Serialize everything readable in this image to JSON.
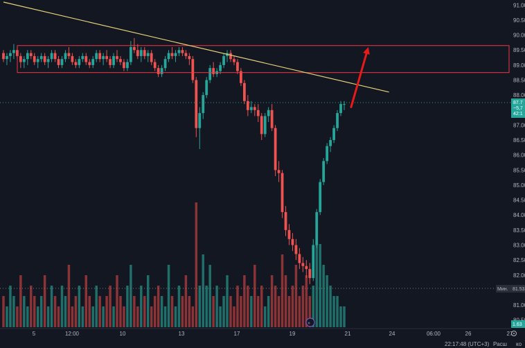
{
  "colors": {
    "background": "#131722",
    "bull": "#26a69a",
    "bear": "#ef5350",
    "vol_bull": "#1f6f6a",
    "vol_bear": "#8c3336",
    "trendline": "#e8d27a",
    "zone": "#f23645",
    "arrow": "#e81a1a",
    "axis_text": "#b2b5be",
    "price_tag_bg": "#26a69a",
    "badge_bg": "#2a2e39"
  },
  "chart_data": {
    "type": "candlestick",
    "y_axis": {
      "range": [
        80.4,
        91.1
      ],
      "ticks": [
        "91.00",
        "90.50",
        "90.00",
        "89.50",
        "89.00",
        "88.50",
        "88.00",
        "87.50",
        "87.00",
        "86.50",
        "86.00",
        "85.50",
        "85.00",
        "84.50",
        "84.00",
        "83.50",
        "83.00",
        "82.50",
        "82.00",
        "81.50",
        "81.00",
        "80.50"
      ]
    },
    "x_axis": {
      "ticks": [
        "5",
        "12:00",
        "10",
        "13",
        "17",
        "19",
        "21",
        "24",
        "06:00",
        "26",
        "27"
      ]
    },
    "candles": [
      [
        89.4,
        89.5,
        89.1,
        89.2
      ],
      [
        89.2,
        89.4,
        89.0,
        89.3
      ],
      [
        89.3,
        89.5,
        89.1,
        89.4
      ],
      [
        89.4,
        89.7,
        89.2,
        89.5
      ],
      [
        89.5,
        89.6,
        89.2,
        89.3
      ],
      [
        89.3,
        89.4,
        88.9,
        89.1
      ],
      [
        89.1,
        89.3,
        88.9,
        89.2
      ],
      [
        89.2,
        89.5,
        89.0,
        89.4
      ],
      [
        89.4,
        89.5,
        89.2,
        89.3
      ],
      [
        89.3,
        89.4,
        89.0,
        89.1
      ],
      [
        89.1,
        89.3,
        88.9,
        89.2
      ],
      [
        89.2,
        89.4,
        89.1,
        89.3
      ],
      [
        89.3,
        89.4,
        89.0,
        89.1
      ],
      [
        89.1,
        89.3,
        88.9,
        89.2
      ],
      [
        89.2,
        89.5,
        89.1,
        89.4
      ],
      [
        89.4,
        89.5,
        89.1,
        89.2
      ],
      [
        89.2,
        89.3,
        88.9,
        89.0
      ],
      [
        89.0,
        89.3,
        88.9,
        89.2
      ],
      [
        89.2,
        89.5,
        89.1,
        89.4
      ],
      [
        89.4,
        89.6,
        89.2,
        89.3
      ],
      [
        89.3,
        89.4,
        89.0,
        89.1
      ],
      [
        89.1,
        89.2,
        88.9,
        89.0
      ],
      [
        89.0,
        89.3,
        88.9,
        89.2
      ],
      [
        89.2,
        89.4,
        89.1,
        89.3
      ],
      [
        89.3,
        89.4,
        89.0,
        89.1
      ],
      [
        89.1,
        89.2,
        88.9,
        89.0
      ],
      [
        89.0,
        89.3,
        88.9,
        89.2
      ],
      [
        89.2,
        89.5,
        89.1,
        89.4
      ],
      [
        89.4,
        89.5,
        89.1,
        89.2
      ],
      [
        89.2,
        89.4,
        89.0,
        89.3
      ],
      [
        89.3,
        89.5,
        89.1,
        89.2
      ],
      [
        89.2,
        89.3,
        88.9,
        89.0
      ],
      [
        89.0,
        89.4,
        88.9,
        89.3
      ],
      [
        89.3,
        89.5,
        89.1,
        89.2
      ],
      [
        89.2,
        89.3,
        89.0,
        89.1
      ],
      [
        89.1,
        89.2,
        88.8,
        88.9
      ],
      [
        88.9,
        89.2,
        88.8,
        89.1
      ],
      [
        89.1,
        89.8,
        89.0,
        89.6
      ],
      [
        89.6,
        89.9,
        89.4,
        89.5
      ],
      [
        89.5,
        89.7,
        89.2,
        89.3
      ],
      [
        89.3,
        89.6,
        89.1,
        89.5
      ],
      [
        89.5,
        89.6,
        89.2,
        89.3
      ],
      [
        89.3,
        89.5,
        89.1,
        89.4
      ],
      [
        89.4,
        89.5,
        89.0,
        89.1
      ],
      [
        89.1,
        89.2,
        88.8,
        88.9
      ],
      [
        88.9,
        89.0,
        88.6,
        88.7
      ],
      [
        88.7,
        89.0,
        88.6,
        88.9
      ],
      [
        88.9,
        89.3,
        88.8,
        89.2
      ],
      [
        89.2,
        89.5,
        89.1,
        89.4
      ],
      [
        89.4,
        89.6,
        89.2,
        89.3
      ],
      [
        89.3,
        89.5,
        89.1,
        89.4
      ],
      [
        89.4,
        89.6,
        89.3,
        89.5
      ],
      [
        89.5,
        89.6,
        89.3,
        89.4
      ],
      [
        89.4,
        89.5,
        89.2,
        89.3
      ],
      [
        89.3,
        89.4,
        89.0,
        89.2
      ],
      [
        89.2,
        89.3,
        88.4,
        88.5
      ],
      [
        88.5,
        88.6,
        86.6,
        86.9
      ],
      [
        86.9,
        87.6,
        86.2,
        87.4
      ],
      [
        87.4,
        88.1,
        87.2,
        88.0
      ],
      [
        88.0,
        88.6,
        87.9,
        88.5
      ],
      [
        88.5,
        89.0,
        88.4,
        88.9
      ],
      [
        88.9,
        89.1,
        88.6,
        88.7
      ],
      [
        88.7,
        88.9,
        88.6,
        88.8
      ],
      [
        88.8,
        89.1,
        88.7,
        89.0
      ],
      [
        89.0,
        89.4,
        88.9,
        89.3
      ],
      [
        89.3,
        89.5,
        89.1,
        89.4
      ],
      [
        89.4,
        89.5,
        89.1,
        89.2
      ],
      [
        89.2,
        89.3,
        89.0,
        89.1
      ],
      [
        89.1,
        89.2,
        88.7,
        88.8
      ],
      [
        88.8,
        88.9,
        88.3,
        88.4
      ],
      [
        88.4,
        88.5,
        87.7,
        87.8
      ],
      [
        87.8,
        88.0,
        87.3,
        87.5
      ],
      [
        87.5,
        87.8,
        87.4,
        87.6
      ],
      [
        87.6,
        87.7,
        87.3,
        87.5
      ],
      [
        87.5,
        87.7,
        87.1,
        87.3
      ],
      [
        87.3,
        87.4,
        86.5,
        86.7
      ],
      [
        86.7,
        87.4,
        86.6,
        87.3
      ],
      [
        87.3,
        87.6,
        87.1,
        87.5
      ],
      [
        87.5,
        87.7,
        86.8,
        86.9
      ],
      [
        86.9,
        87.0,
        85.3,
        85.5
      ],
      [
        85.5,
        85.8,
        85.1,
        85.4
      ],
      [
        85.4,
        85.5,
        83.9,
        84.1
      ],
      [
        84.1,
        84.3,
        83.3,
        83.5
      ],
      [
        83.5,
        83.7,
        83.0,
        83.2
      ],
      [
        83.2,
        83.4,
        82.8,
        83.0
      ],
      [
        83.0,
        83.2,
        82.5,
        82.7
      ],
      [
        82.7,
        82.9,
        82.2,
        82.4
      ],
      [
        82.4,
        82.6,
        82.1,
        82.3
      ],
      [
        82.3,
        82.5,
        81.9,
        82.2
      ],
      [
        82.2,
        82.4,
        81.7,
        81.9
      ],
      [
        81.9,
        83.2,
        81.8,
        83.0
      ],
      [
        83.0,
        84.2,
        82.9,
        84.1
      ],
      [
        84.1,
        85.2,
        84.0,
        85.1
      ],
      [
        85.1,
        85.9,
        85.0,
        85.8
      ],
      [
        85.8,
        86.4,
        85.7,
        86.3
      ],
      [
        86.3,
        86.6,
        86.1,
        86.5
      ],
      [
        86.5,
        87.0,
        86.4,
        86.9
      ],
      [
        86.9,
        87.5,
        86.8,
        87.4
      ],
      [
        87.4,
        87.8,
        87.3,
        87.7
      ],
      [
        87.7,
        87.8,
        87.5,
        87.7
      ]
    ],
    "volume": [
      3,
      2,
      4,
      3,
      2,
      5,
      3,
      2,
      4,
      3,
      2,
      3,
      5,
      2,
      4,
      3,
      2,
      4,
      3,
      6,
      2,
      3,
      4,
      2,
      5,
      3,
      2,
      4,
      3,
      2,
      3,
      4,
      2,
      5,
      3,
      2,
      4,
      6,
      3,
      2,
      4,
      3,
      5,
      2,
      3,
      4,
      3,
      2,
      6,
      3,
      2,
      4,
      3,
      5,
      3,
      2,
      12,
      4,
      7,
      4,
      6,
      3,
      4,
      2,
      3,
      5,
      3,
      2,
      4,
      3,
      5,
      4,
      3,
      6,
      3,
      4,
      2,
      3,
      5,
      4,
      3,
      7,
      5,
      3,
      4,
      6,
      3,
      4,
      5,
      3,
      4,
      9,
      8,
      6,
      5,
      4,
      3,
      3,
      2,
      2
    ]
  },
  "drawings": {
    "trendline": {
      "from": [
        0,
        91.1
      ],
      "to": [
        112,
        88.1
      ]
    },
    "resistance_zone": {
      "top": 89.65,
      "bottom": 88.75
    },
    "arrow": {
      "from": [
        101,
        87.6
      ],
      "to": [
        106,
        89.6
      ]
    }
  },
  "price_axis_labels": {
    "current_price": "87.7",
    "current_change": "−5,7",
    "countdown": "42:1",
    "min_label": "Мин.",
    "min_value": "81.53",
    "volume_value": "1.63"
  },
  "bottom_bar": {
    "time": "22:17:48 (UTC+3)",
    "session": "Расш",
    "extra": "ко"
  }
}
